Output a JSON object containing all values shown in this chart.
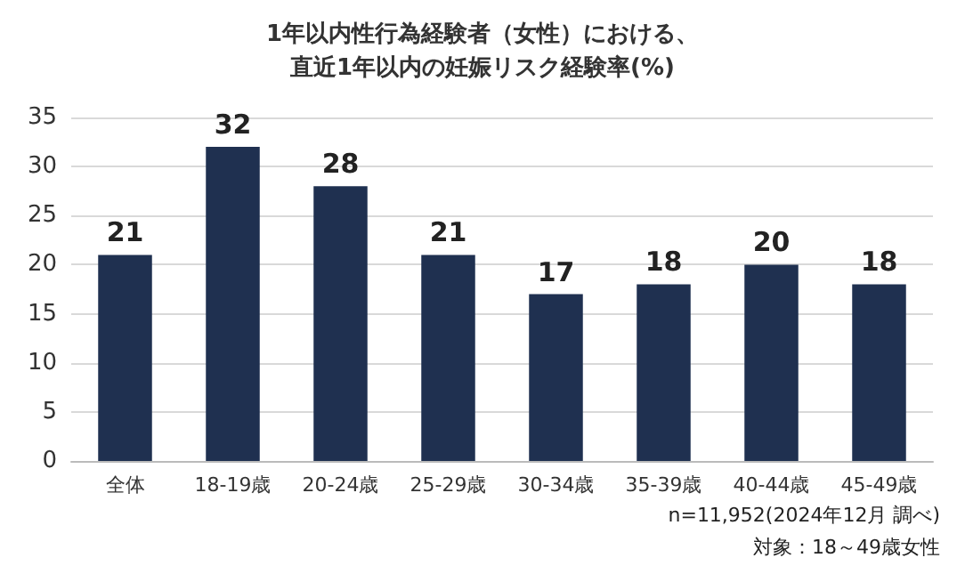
{
  "chart_data": {
    "type": "bar",
    "title": "1年以内性行為経験者（女性）における、",
    "subtitle": "直近1年以内の妊娠リスク経験率(%)",
    "categories": [
      "全体",
      "18-19歳",
      "20-24歳",
      "25-29歳",
      "30-34歳",
      "35-39歳",
      "40-44歳",
      "45-49歳"
    ],
    "values": [
      21,
      32,
      28,
      21,
      17,
      18,
      20,
      18
    ],
    "color": "#1f3050",
    "ylim": [
      0,
      35
    ],
    "yticks": [
      0,
      5,
      10,
      15,
      20,
      25,
      30,
      35
    ],
    "grid": "y",
    "data_labels": true,
    "annotations": [
      "n=11,952(2024年12月 調べ)",
      "対象：18～49歳女性"
    ]
  }
}
